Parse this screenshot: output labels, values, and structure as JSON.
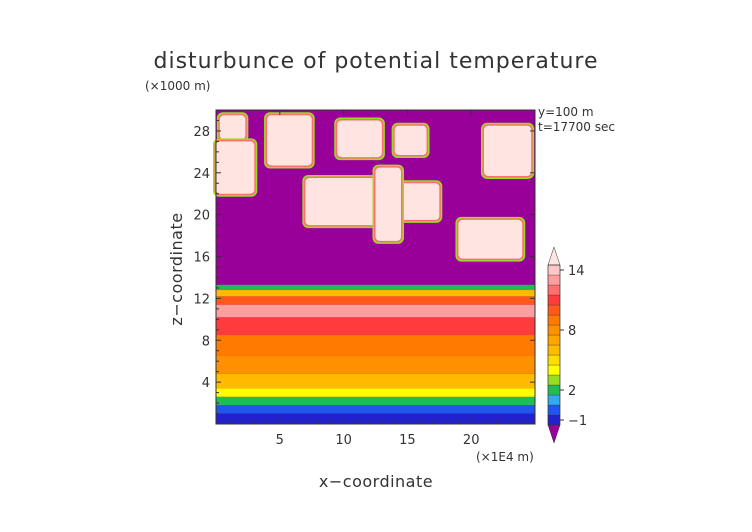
{
  "chart_data": {
    "type": "heatmap",
    "title": "disturbunce of potential temperature",
    "xlabel": "x−coordinate",
    "ylabel": "z−coordinate",
    "x_unit": "(×1E4 m)",
    "y_unit": "(×1000 m)",
    "xlim": [
      0,
      25
    ],
    "ylim": [
      0,
      30
    ],
    "x_ticks": [
      5,
      10,
      15,
      20
    ],
    "y_ticks": [
      4,
      8,
      12,
      16,
      20,
      24,
      28
    ],
    "annotations": [
      "y=100 m",
      "t=17700 sec"
    ],
    "colorbar": {
      "tick_labels": [
        "14",
        "8",
        "2",
        "−1"
      ],
      "tick_values": [
        14,
        8,
        2,
        -1
      ],
      "levels": [
        -2,
        -1,
        0,
        1,
        2,
        3,
        4,
        5,
        6,
        7,
        8,
        9,
        10,
        11,
        12,
        13,
        14,
        15
      ],
      "colors": [
        "#990099",
        "#2222cc",
        "#2255ee",
        "#33aaee",
        "#22bb55",
        "#99dd22",
        "#ffff00",
        "#ffdd00",
        "#ffbb00",
        "#ffa500",
        "#ff9000",
        "#ff7a00",
        "#ff5a1a",
        "#ff3b3b",
        "#ff6f6f",
        "#ff9e9e",
        "#ffc8c8",
        "#ffe4e1"
      ],
      "extend": "both"
    },
    "background_value": -2,
    "regions": [
      {
        "desc": "tropospheric layers",
        "bands": [
          {
            "z": [
              0,
              1.0
            ],
            "value": -1
          },
          {
            "z": [
              1.0,
              1.8
            ],
            "value": 0
          },
          {
            "z": [
              1.8,
              2.6
            ],
            "value": 2
          },
          {
            "z": [
              2.6,
              3.4
            ],
            "value": 4
          },
          {
            "z": [
              3.4,
              4.8
            ],
            "value": 6
          },
          {
            "z": [
              4.8,
              6.5
            ],
            "value": 8
          },
          {
            "z": [
              6.5,
              8.5
            ],
            "value": 9
          },
          {
            "z": [
              8.5,
              10.2
            ],
            "value": 11
          },
          {
            "z": [
              10.2,
              11.4
            ],
            "value": 13
          },
          {
            "z": [
              11.4,
              12.2
            ],
            "value": 10
          },
          {
            "z": [
              12.2,
              12.8
            ],
            "value": 6
          },
          {
            "z": [
              12.8,
              13.3
            ],
            "value": 2
          }
        ]
      },
      {
        "desc": "upper warm patches",
        "patches": [
          {
            "x": [
              0.3,
              2.3
            ],
            "z": [
              27.2,
              29.5
            ],
            "value": 15
          },
          {
            "x": [
              4.0,
              7.5
            ],
            "z": [
              24.7,
              29.5
            ],
            "value": 15
          },
          {
            "x": [
              9.5,
              13.0
            ],
            "z": [
              25.5,
              29.0
            ],
            "value": 15
          },
          {
            "x": [
              14.0,
              16.5
            ],
            "z": [
              25.7,
              28.5
            ],
            "value": 15
          },
          {
            "x": [
              21.0,
              24.7
            ],
            "z": [
              23.7,
              28.5
            ],
            "value": 15
          },
          {
            "x": [
              0.0,
              3.0
            ],
            "z": [
              22.0,
              27.0
            ],
            "value": 15
          },
          {
            "x": [
              7.0,
              13.0
            ],
            "z": [
              19.0,
              23.5
            ],
            "value": 15
          },
          {
            "x": [
              14.0,
              17.5
            ],
            "z": [
              19.5,
              23.0
            ],
            "value": 15
          },
          {
            "x": [
              19.0,
              24.0
            ],
            "z": [
              15.8,
              19.5
            ],
            "value": 15
          },
          {
            "x": [
              12.5,
              14.5
            ],
            "z": [
              17.5,
              24.5
            ],
            "value": 15
          }
        ]
      }
    ]
  }
}
